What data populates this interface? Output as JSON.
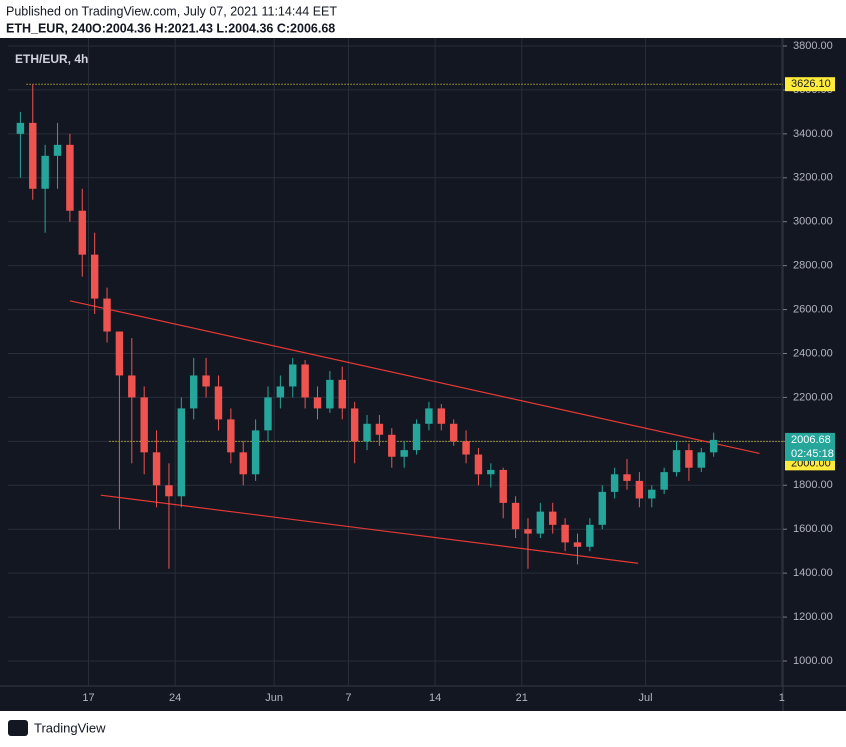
{
  "header": {
    "published": "Published on TradingView.com, July 07, 2021 11:14:44 EET",
    "symbol": "ETH_EUR, 240",
    "ohlc": "O:2004.36 H:2021.43 L:2004.36 C:2006.68"
  },
  "footer": {
    "brand": "TradingView"
  },
  "chart_data": {
    "type": "candlestick",
    "title": "ETH/EUR, 4h",
    "up_color": "#26a69a",
    "down_color": "#ef5350",
    "grid": true,
    "x": [
      11.5,
      12.5,
      13.5,
      14.5,
      15.5,
      16.5,
      17.5,
      18.5,
      19.5,
      20.5,
      21.5,
      22.5,
      23.5,
      24.5,
      25.5,
      26.5,
      27.5,
      28.5,
      29.5,
      30.5,
      31.5,
      32.5,
      33.5,
      34.5,
      35.5,
      36.5,
      37.5,
      38.5,
      39.5,
      40.5,
      41.5,
      42.5,
      43.5,
      44.5,
      45.5,
      46.5,
      47.5,
      48.5,
      49.5,
      50.5,
      51.5,
      52.5,
      53.5,
      54.5,
      55.5,
      56.5,
      57.5,
      58.5,
      59.5,
      60.5,
      61.5,
      62.5,
      63.5,
      64.5,
      65.5,
      66.5,
      67.5
    ],
    "open": [
      3400,
      3450,
      3150,
      3300,
      3350,
      3050,
      2850,
      2650,
      2500,
      2300,
      2200,
      1950,
      1800,
      1750,
      2150,
      2300,
      2250,
      2100,
      1950,
      1850,
      2050,
      2200,
      2250,
      2350,
      2200,
      2150,
      2280,
      2150,
      2000,
      2080,
      2030,
      1930,
      1960,
      2080,
      2150,
      2080,
      2000,
      1940,
      1850,
      1870,
      1720,
      1600,
      1580,
      1680,
      1620,
      1540,
      1520,
      1620,
      1770,
      1850,
      1820,
      1740,
      1780,
      1860,
      1960,
      1880,
      1950
    ],
    "high": [
      3500,
      3626.1,
      3350,
      3450,
      3400,
      3150,
      2950,
      2700,
      2500,
      2470,
      2250,
      2050,
      1900,
      2200,
      2380,
      2380,
      2300,
      2150,
      2000,
      2100,
      2250,
      2300,
      2380,
      2370,
      2250,
      2320,
      2340,
      2180,
      2120,
      2120,
      2060,
      2000,
      2100,
      2180,
      2170,
      2100,
      2050,
      1970,
      1900,
      1880,
      1750,
      1650,
      1720,
      1720,
      1650,
      1580,
      1650,
      1800,
      1880,
      1920,
      1860,
      1800,
      1880,
      2000,
      1990,
      1970,
      2040
    ],
    "low": [
      3200,
      3100,
      2950,
      3150,
      3000,
      2750,
      2580,
      2450,
      1600,
      1900,
      1850,
      1700,
      1420,
      1700,
      2100,
      2200,
      2050,
      1900,
      1800,
      1820,
      2000,
      2150,
      2200,
      2150,
      2100,
      2130,
      2100,
      1900,
      1960,
      1980,
      1880,
      1880,
      1940,
      2050,
      2050,
      1980,
      1900,
      1800,
      1790,
      1650,
      1560,
      1420,
      1560,
      1580,
      1500,
      1440,
      1500,
      1600,
      1740,
      1780,
      1700,
      1700,
      1760,
      1840,
      1820,
      1860,
      1930
    ],
    "close": [
      3450,
      3150,
      3300,
      3350,
      3050,
      2850,
      2650,
      2500,
      2300,
      2200,
      1950,
      1800,
      1750,
      2150,
      2300,
      2250,
      2100,
      1950,
      1850,
      2050,
      2200,
      2250,
      2350,
      2200,
      2150,
      2280,
      2150,
      2000,
      2080,
      2030,
      1930,
      1960,
      2080,
      2150,
      2080,
      2000,
      1940,
      1850,
      1870,
      1720,
      1600,
      1580,
      1680,
      1620,
      1540,
      1520,
      1620,
      1770,
      1850,
      1820,
      1740,
      1780,
      1860,
      1960,
      1880,
      1950,
      2006.68
    ],
    "xlim": [
      10.5,
      73.1
    ],
    "xticks": [
      {
        "value": 17,
        "label": "17"
      },
      {
        "value": 24,
        "label": "24"
      },
      {
        "value": 32,
        "label": "Jun"
      },
      {
        "value": 38,
        "label": "7"
      },
      {
        "value": 45,
        "label": "14"
      },
      {
        "value": 52,
        "label": "21"
      },
      {
        "value": 62,
        "label": "Jul"
      },
      {
        "value": 73,
        "label": "1"
      }
    ],
    "ylim": [
      950,
      3840
    ],
    "yticks": [
      {
        "value": 1000,
        "label": "1000.00"
      },
      {
        "value": 1200,
        "label": "1200.00"
      },
      {
        "value": 1400,
        "label": "1400.00"
      },
      {
        "value": 1600,
        "label": "1600.00"
      },
      {
        "value": 1800,
        "label": "1800.00"
      },
      {
        "value": 2000,
        "label": "2000.00"
      },
      {
        "value": 2200,
        "label": "2200.00"
      },
      {
        "value": 2400,
        "label": "2400.00"
      },
      {
        "value": 2600,
        "label": "2600.00"
      },
      {
        "value": 2800,
        "label": "2800.00"
      },
      {
        "value": 3000,
        "label": "3000.00"
      },
      {
        "value": 3200,
        "label": "3200.00"
      },
      {
        "value": 3400,
        "label": "3400.00"
      },
      {
        "value": 3600,
        "label": "3600.00"
      },
      {
        "value": 3800,
        "label": "3800.00"
      }
    ],
    "trendlines": [
      {
        "color": "#e53935",
        "x": [
          15.5,
          71.2
        ],
        "y": [
          2640,
          1945
        ]
      },
      {
        "color": "#e53935",
        "x": [
          18,
          61.4
        ],
        "y": [
          1755,
          1445
        ]
      }
    ],
    "hlines": [
      {
        "value": 3626.1,
        "label": "3626.10",
        "x_start": 12,
        "color": "#ffeb3b"
      },
      {
        "value": 2000,
        "label": "2000.00",
        "x_start": 18.7,
        "color": "#ffeb3b"
      }
    ],
    "last_price": {
      "value": 2006.68,
      "label": "2006.68",
      "countdown": "02:45:18",
      "color": "#26a69a"
    }
  }
}
